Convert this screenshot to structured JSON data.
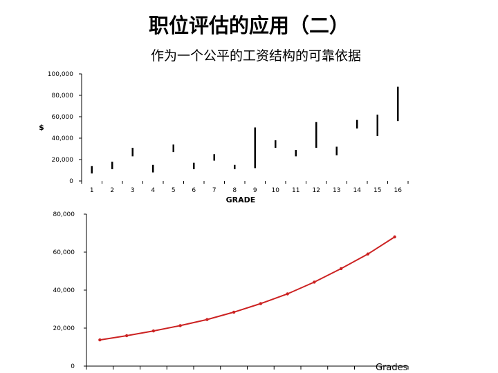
{
  "title": "职位评估的应用（二）",
  "subtitle": "作为一个公平的工资结构的可靠依据",
  "chart_data": [
    {
      "type": "range-bar",
      "ylabel": "$",
      "xlabel": "GRADE",
      "ylim": [
        0,
        100000
      ],
      "yticks": [
        "100,000",
        "80,000",
        "60,000",
        "40,000",
        "20,000",
        "0"
      ],
      "ytick_values": [
        100000,
        80000,
        60000,
        40000,
        20000,
        0
      ],
      "categories": [
        "1",
        "2",
        "3",
        "4",
        "5",
        "6",
        "7",
        "8",
        "9",
        "10",
        "11",
        "12",
        "13",
        "14",
        "15",
        "16"
      ],
      "ranges": [
        [
          7000,
          14000
        ],
        [
          11000,
          18000
        ],
        [
          23000,
          31000
        ],
        [
          8000,
          15000
        ],
        [
          27000,
          34000
        ],
        [
          11000,
          17000
        ],
        [
          19000,
          25000
        ],
        [
          11000,
          15000
        ],
        [
          12000,
          50000
        ],
        [
          31000,
          38000
        ],
        [
          23000,
          29000
        ],
        [
          31000,
          55000
        ],
        [
          24000,
          32000
        ],
        [
          49000,
          57000
        ],
        [
          42000,
          62000
        ],
        [
          56000,
          88000
        ]
      ],
      "color": "#000000"
    },
    {
      "type": "line",
      "xlabel": "Grades",
      "ylim": [
        0,
        80000
      ],
      "yticks": [
        "80,000",
        "60,000",
        "40,000",
        "20,000",
        "0"
      ],
      "ytick_values": [
        80000,
        60000,
        40000,
        20000,
        0
      ],
      "values": [
        13800,
        16000,
        18500,
        21300,
        24500,
        28400,
        32900,
        38000,
        44200,
        51300,
        59000,
        68000
      ],
      "color": "#cc2222"
    }
  ]
}
